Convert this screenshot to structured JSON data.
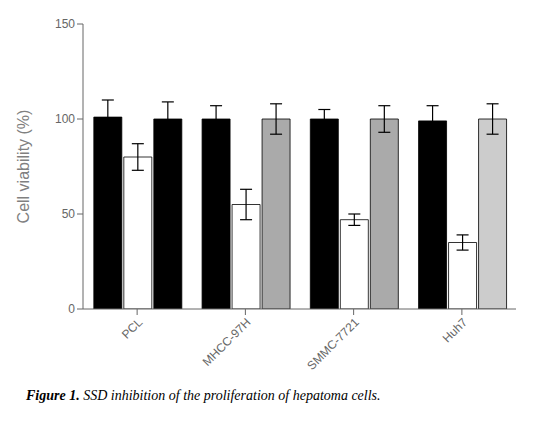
{
  "chart_data": {
    "type": "bar",
    "categories": [
      "PCL",
      "MHCC-97H",
      "SMMC-7721",
      "Huh7"
    ],
    "series": [
      {
        "color": "#000000",
        "values": [
          101,
          100,
          100,
          99
        ],
        "errors": [
          9,
          7,
          5,
          8
        ]
      },
      {
        "color": "#ffffff",
        "values": [
          80,
          55,
          47,
          35
        ],
        "errors": [
          7,
          8,
          3,
          4
        ]
      },
      {
        "colors": [
          "#000000",
          "#aaaaaa",
          "#aaaaaa",
          "#cccccc"
        ],
        "values": [
          100,
          100,
          100,
          100
        ],
        "errors": [
          9,
          8,
          7,
          8
        ]
      }
    ],
    "ylabel": "Cell viability (%)",
    "ylim": [
      0,
      150
    ],
    "yticks": [
      0,
      50,
      100,
      150
    ],
    "grid": false,
    "annotations": [
      "Figure 1.",
      " SSD inhibition of the proliferation of hepatoma cells."
    ]
  }
}
